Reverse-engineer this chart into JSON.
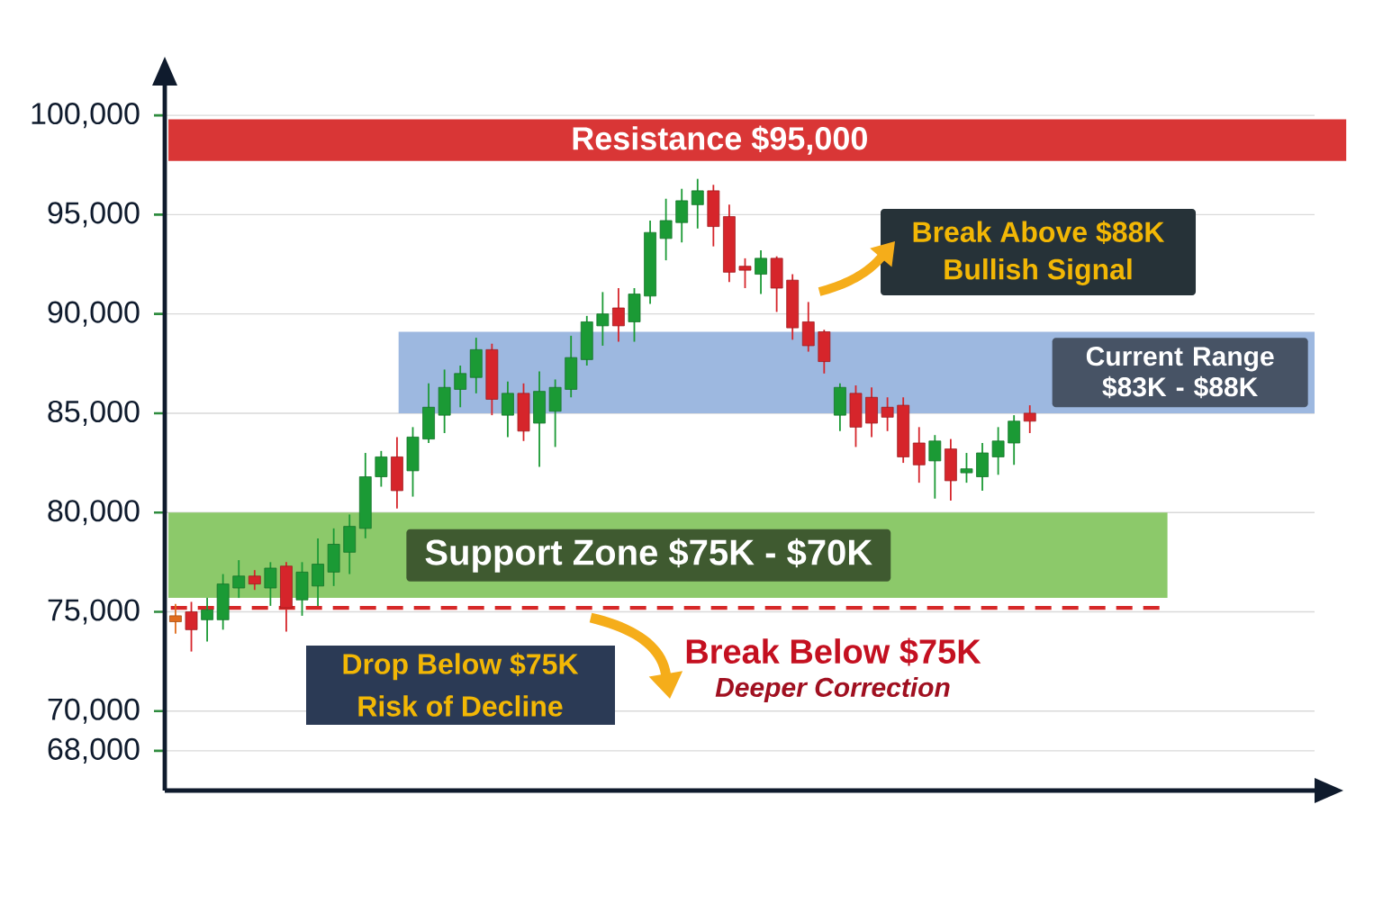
{
  "chart_data": {
    "type": "candlestick",
    "categories": [
      null,
      null,
      null,
      null,
      null,
      null,
      null,
      null,
      null,
      null,
      null,
      null,
      null,
      null,
      null,
      null,
      null,
      null,
      null,
      null,
      null,
      null,
      null,
      null,
      null,
      null,
      null,
      null,
      null,
      null,
      null,
      null,
      null,
      null,
      null,
      null,
      null,
      null,
      null,
      null,
      null,
      null,
      null,
      null,
      null,
      null,
      null,
      null,
      null,
      null,
      null,
      null,
      null,
      null,
      null
    ],
    "ohlc": [
      [
        74800,
        75400,
        73900,
        74500
      ],
      [
        75000,
        75500,
        73000,
        74100
      ],
      [
        74600,
        75700,
        73500,
        75100
      ],
      [
        74600,
        76900,
        74100,
        76400
      ],
      [
        76200,
        77600,
        75700,
        76800
      ],
      [
        76800,
        77100,
        76100,
        76400
      ],
      [
        76200,
        77500,
        75300,
        77200
      ],
      [
        77300,
        77500,
        74000,
        75200
      ],
      [
        75600,
        77500,
        74800,
        77000
      ],
      [
        76300,
        78700,
        75300,
        77400
      ],
      [
        77000,
        79200,
        76300,
        78400
      ],
      [
        78000,
        79900,
        76900,
        79300
      ],
      [
        79200,
        83000,
        78700,
        81800
      ],
      [
        81800,
        83100,
        81300,
        82800
      ],
      [
        82800,
        83800,
        80200,
        81100
      ],
      [
        82100,
        84300,
        80800,
        83800
      ],
      [
        83700,
        86500,
        83500,
        85300
      ],
      [
        84900,
        87200,
        84000,
        86300
      ],
      [
        86200,
        87400,
        85300,
        87000
      ],
      [
        86800,
        88800,
        86000,
        88200
      ],
      [
        88200,
        88500,
        84900,
        85700
      ],
      [
        84900,
        86600,
        83800,
        86000
      ],
      [
        86000,
        86500,
        83600,
        84100
      ],
      [
        84500,
        87100,
        82300,
        86100
      ],
      [
        85100,
        86700,
        83300,
        86300
      ],
      [
        86200,
        88900,
        85800,
        87800
      ],
      [
        87700,
        89900,
        87400,
        89600
      ],
      [
        89400,
        91100,
        88400,
        90000
      ],
      [
        90300,
        91300,
        88600,
        89400
      ],
      [
        89600,
        91300,
        88600,
        91000
      ],
      [
        90900,
        94700,
        90500,
        94100
      ],
      [
        93800,
        95800,
        92700,
        94700
      ],
      [
        94600,
        96300,
        93600,
        95700
      ],
      [
        95500,
        96800,
        94300,
        96200
      ],
      [
        96200,
        96500,
        93400,
        94400
      ],
      [
        94900,
        95500,
        91600,
        92100
      ],
      [
        92400,
        92800,
        91300,
        92200
      ],
      [
        92000,
        93200,
        91000,
        92800
      ],
      [
        92800,
        92900,
        90100,
        91300
      ],
      [
        91700,
        92000,
        88700,
        89300
      ],
      [
        89600,
        90600,
        88100,
        88400
      ],
      [
        89100,
        89200,
        87000,
        87600
      ],
      [
        84900,
        86500,
        84100,
        86300
      ],
      [
        86000,
        86400,
        83300,
        84300
      ],
      [
        85800,
        86300,
        83800,
        84500
      ],
      [
        85300,
        85800,
        84100,
        84800
      ],
      [
        85400,
        85800,
        82500,
        82800
      ],
      [
        83500,
        84300,
        81500,
        82400
      ],
      [
        82600,
        83900,
        80700,
        83600
      ],
      [
        83200,
        83700,
        80600,
        81600
      ],
      [
        82000,
        83000,
        81500,
        82200
      ],
      [
        81800,
        83500,
        81100,
        83000
      ],
      [
        82800,
        84300,
        81900,
        83600
      ],
      [
        83500,
        84900,
        82400,
        84600
      ],
      [
        85000,
        85400,
        84000,
        84600
      ]
    ],
    "colors": [
      "#e06c1c",
      "#d6252b",
      "#1b9a35",
      "#1b9a35",
      "#1b9a35",
      "#d6252b",
      "#1b9a35",
      "#d6252b",
      "#1b9a35",
      "#1b9a35",
      "#1b9a35",
      "#1b9a35",
      "#1b9a35",
      "#1b9a35",
      "#d6252b",
      "#1b9a35",
      "#1b9a35",
      "#1b9a35",
      "#1b9a35",
      "#1b9a35",
      "#d6252b",
      "#1b9a35",
      "#d6252b",
      "#1b9a35",
      "#1b9a35",
      "#1b9a35",
      "#1b9a35",
      "#1b9a35",
      "#d6252b",
      "#1b9a35",
      "#1b9a35",
      "#1b9a35",
      "#1b9a35",
      "#1b9a35",
      "#d6252b",
      "#d6252b",
      "#d6252b",
      "#1b9a35",
      "#d6252b",
      "#d6252b",
      "#d6252b",
      "#d6252b",
      "#1b9a35",
      "#d6252b",
      "#d6252b",
      "#d6252b",
      "#d6252b",
      "#d6252b",
      "#1b9a35",
      "#d6252b",
      "#1b9a35",
      "#1b9a35",
      "#1b9a35",
      "#1b9a35",
      "#d6252b"
    ],
    "ylim": [
      66000,
      101500
    ],
    "yticks": [
      {
        "value": 68000,
        "label": "68,000"
      },
      {
        "value": 70000,
        "label": "70,000"
      },
      {
        "value": 75000,
        "label": "75,000"
      },
      {
        "value": 80000,
        "label": "80,000"
      },
      {
        "value": 85000,
        "label": "85,000"
      },
      {
        "value": 90000,
        "label": "90,000"
      },
      {
        "value": 95000,
        "label": "95,000"
      },
      {
        "value": 100000,
        "label": "100,000"
      }
    ],
    "grid": "y",
    "tick_labels": "y",
    "bands": [
      {
        "axis": "y",
        "from": 97700,
        "to": 99800,
        "label": "Resistance $95,000",
        "color": "#d93636"
      },
      {
        "axis": "y",
        "from": 75700,
        "to": 80000,
        "label": "Support Zone $75K - $70K",
        "color": "#8cc96a"
      },
      {
        "axis": "y",
        "from": 85000,
        "to": 89100,
        "label": "Current Range $83K - $88K",
        "color": "#9db8e0"
      }
    ],
    "ref_lines": [
      {
        "axis": "y",
        "value": 75200,
        "color": "#d62828",
        "line_style": "dashed"
      }
    ],
    "annotations": [
      "Break Above $88K",
      "Bullish Signal",
      "Break Below $75K",
      "Deeper Correction",
      "Drop Below $75K",
      "Risk of Decline"
    ]
  }
}
